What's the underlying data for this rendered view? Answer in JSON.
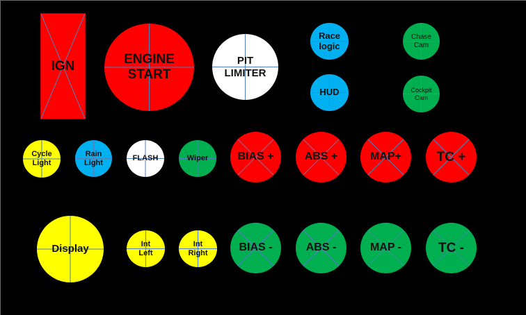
{
  "colors": {
    "background": "#000000",
    "red": "#FF0000",
    "white": "#FFFFFF",
    "blue": "#00B0F0",
    "green": "#00B050",
    "yellow": "#FFFF00",
    "divider": "#4F81BD"
  },
  "controls": {
    "ign": {
      "label": "IGN",
      "color": "red",
      "shape": "rectangle",
      "marker": "diagonal-cross"
    },
    "engine_start": {
      "label": "ENGINE\nSTART",
      "color": "red",
      "shape": "circle",
      "marker": "plus-cross"
    },
    "pit_limiter": {
      "label": "PIT\nLIMITER",
      "color": "white",
      "shape": "circle",
      "marker": "plus-cross"
    },
    "race_logic": {
      "label": "Race\nlogic",
      "color": "blue",
      "shape": "circle",
      "marker": "plus-cross"
    },
    "hud": {
      "label": "HUD",
      "color": "blue",
      "shape": "circle",
      "marker": "plus-cross"
    },
    "chase_cam": {
      "label": "Chase\nCam",
      "color": "green",
      "shape": "circle",
      "marker": "plus-cross"
    },
    "cockpit_cam": {
      "label": "Cockpit\nCam",
      "color": "green",
      "shape": "circle",
      "marker": "plus-cross"
    },
    "cycle_light": {
      "label": "Cycle\nLight",
      "color": "yellow",
      "shape": "circle",
      "marker": "plus-cross"
    },
    "rain_light": {
      "label": "Rain\nLight",
      "color": "blue",
      "shape": "circle",
      "marker": "plus-cross"
    },
    "flash": {
      "label": "FLASH",
      "color": "white",
      "shape": "circle",
      "marker": "plus-cross"
    },
    "wiper": {
      "label": "Wiper",
      "color": "green",
      "shape": "circle",
      "marker": "plus-cross"
    },
    "bias_plus": {
      "label": "BIAS +",
      "color": "red",
      "shape": "circle",
      "marker": "diagonal-cross"
    },
    "abs_plus": {
      "label": "ABS +",
      "color": "red",
      "shape": "circle",
      "marker": "diagonal-cross"
    },
    "map_plus": {
      "label": "MAP+",
      "color": "red",
      "shape": "circle",
      "marker": "diagonal-cross"
    },
    "tc_plus": {
      "label": "TC +",
      "color": "red",
      "shape": "circle",
      "marker": "diagonal-cross"
    },
    "display": {
      "label": "Display",
      "color": "yellow",
      "shape": "circle",
      "marker": "plus-cross"
    },
    "int_left": {
      "label": "Int\nLeft",
      "color": "yellow",
      "shape": "circle",
      "marker": "plus-cross"
    },
    "int_right": {
      "label": "Int\nRight",
      "color": "yellow",
      "shape": "circle",
      "marker": "plus-cross"
    },
    "bias_minus": {
      "label": "BIAS -",
      "color": "green",
      "shape": "circle",
      "marker": "diagonal-cross"
    },
    "abs_minus": {
      "label": "ABS -",
      "color": "green",
      "shape": "circle",
      "marker": "diagonal-cross"
    },
    "map_minus": {
      "label": "MAP -",
      "color": "green",
      "shape": "circle",
      "marker": "diagonal-cross"
    },
    "tc_minus": {
      "label": "TC -",
      "color": "green",
      "shape": "circle",
      "marker": "diagonal-cross"
    }
  }
}
